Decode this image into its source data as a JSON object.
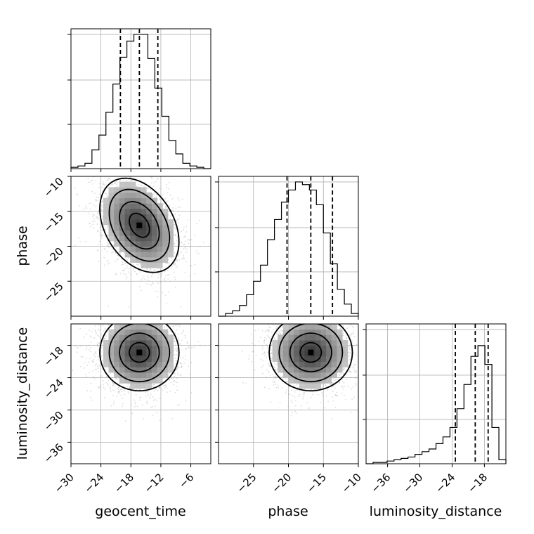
{
  "chart_data": {
    "type": "corner",
    "parameters": [
      "geocent_time",
      "phase",
      "luminosity_distance"
    ],
    "ranges": {
      "geocent_time": [
        -30,
        -2
      ],
      "phase": [
        -30,
        -10
      ],
      "luminosity_distance": [
        -40,
        -14
      ]
    },
    "ticks": {
      "geocent_time": [
        -30,
        -24,
        -18,
        -12,
        -6
      ],
      "phase": [
        -25,
        -20,
        -15,
        -10
      ],
      "luminosity_distance": [
        -36,
        -30,
        -24,
        -18
      ]
    },
    "tick_labels": {
      "geocent_time": [
        "−30",
        "−24",
        "−18",
        "−12",
        "−6"
      ],
      "phase": [
        "−25",
        "−20",
        "−15",
        "−10"
      ],
      "luminosity_distance": [
        "−36",
        "−30",
        "−24",
        "−18"
      ]
    },
    "quantiles": {
      "geocent_time": [
        -20.1,
        -16.3,
        -12.6
      ],
      "phase": [
        -20.2,
        -16.8,
        -13.7
      ],
      "luminosity_distance": [
        -23.4,
        -19.7,
        -17.3
      ]
    },
    "histograms": {
      "geocent_time": {
        "edges": [
          -30,
          -28.6,
          -27.2,
          -25.8,
          -24.4,
          -23.0,
          -21.6,
          -20.2,
          -18.8,
          -17.4,
          -16.0,
          -14.6,
          -13.2,
          -11.8,
          -10.4,
          -9.0,
          -7.6,
          -6.2,
          -4.8,
          -3.4,
          -2.0
        ],
        "counts": [
          0.01,
          0.02,
          0.04,
          0.14,
          0.25,
          0.42,
          0.63,
          0.83,
          0.95,
          1.0,
          1.0,
          0.82,
          0.6,
          0.39,
          0.21,
          0.11,
          0.04,
          0.02,
          0.01,
          0.0
        ]
      },
      "phase": {
        "edges": [
          -30,
          -29,
          -28,
          -27,
          -26,
          -25,
          -24,
          -23,
          -22,
          -21,
          -20,
          -19,
          -18,
          -17,
          -16,
          -15,
          -14,
          -13,
          -12,
          -11,
          -10
        ],
        "counts": [
          0.0,
          0.02,
          0.04,
          0.08,
          0.16,
          0.26,
          0.38,
          0.57,
          0.72,
          0.85,
          0.94,
          1.0,
          0.98,
          0.94,
          0.83,
          0.62,
          0.39,
          0.2,
          0.09,
          0.02
        ]
      },
      "luminosity_distance": {
        "edges": [
          -40.0,
          -38.7,
          -37.4,
          -36.1,
          -34.8,
          -33.5,
          -32.2,
          -30.9,
          -29.6,
          -28.3,
          -27.0,
          -25.7,
          -24.4,
          -23.1,
          -21.8,
          -20.5,
          -19.2,
          -17.9,
          -16.6,
          -15.3,
          -14.0
        ],
        "counts": [
          0.0,
          0.01,
          0.01,
          0.02,
          0.03,
          0.04,
          0.05,
          0.07,
          0.09,
          0.11,
          0.15,
          0.2,
          0.27,
          0.41,
          0.59,
          0.8,
          0.88,
          0.74,
          0.27,
          0.03
        ]
      }
    },
    "contour_levels": [
      0.12,
      0.39,
      0.68,
      0.86
    ],
    "pairs": [
      {
        "x": "geocent_time",
        "y": "phase",
        "mean": [
          -16.3,
          -17.0
        ],
        "sd": [
          4.0,
          3.4
        ],
        "rho": -0.35,
        "points": 2600
      },
      {
        "x": "geocent_time",
        "y": "luminosity_distance",
        "mean": [
          -16.3,
          -19.3
        ],
        "sd": [
          4.0,
          3.6
        ],
        "rho": 0.0,
        "points": 2600
      },
      {
        "x": "phase",
        "y": "luminosity_distance",
        "mean": [
          -16.8,
          -19.3
        ],
        "sd": [
          3.0,
          3.6
        ],
        "rho": 0.0,
        "points": 2600
      }
    ],
    "grid": true
  }
}
